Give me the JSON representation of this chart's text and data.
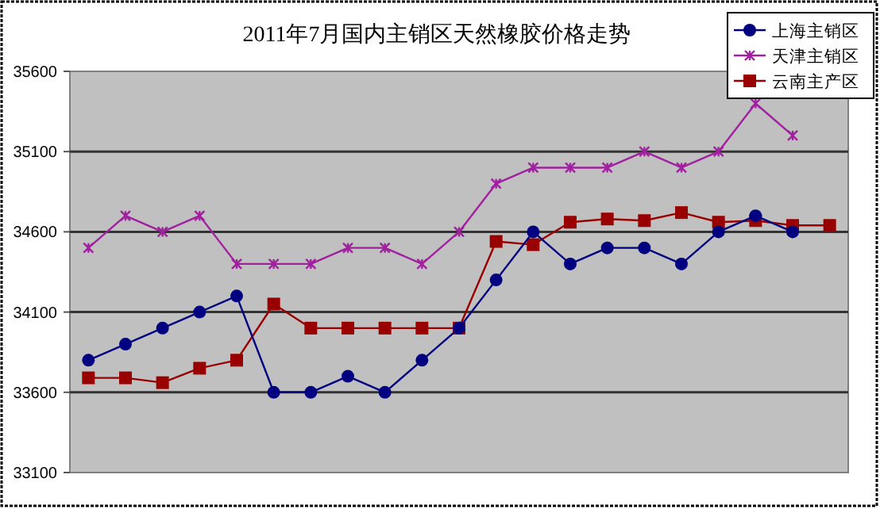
{
  "chart_data": {
    "type": "line",
    "title": "2011年7月国内主销区天然橡胶价格走势",
    "categories": [
      null,
      null,
      null,
      null,
      null,
      null,
      null,
      null,
      null,
      null,
      null,
      null,
      null,
      null,
      null,
      null,
      null,
      null,
      null,
      null,
      null
    ],
    "series": [
      {
        "name": "上海主销区",
        "color": "#000080",
        "marker": "circle",
        "values": [
          33800,
          33900,
          34000,
          34100,
          34200,
          33600,
          33600,
          33700,
          33600,
          33800,
          34000,
          34300,
          34600,
          34400,
          34500,
          34500,
          34400,
          34600,
          34700,
          34600,
          null
        ]
      },
      {
        "name": "天津主销区",
        "color": "#a0209f",
        "marker": "cross",
        "values": [
          34500,
          34700,
          34600,
          34700,
          34400,
          34400,
          34400,
          34500,
          34500,
          34400,
          34600,
          34900,
          35000,
          35000,
          35000,
          35100,
          35000,
          35100,
          35400,
          35200,
          null
        ]
      },
      {
        "name": "云南主产区",
        "color": "#990000",
        "marker": "square",
        "values": [
          33690,
          33690,
          33660,
          33750,
          33800,
          34150,
          34000,
          34000,
          34000,
          34000,
          34000,
          34540,
          34520,
          34660,
          34680,
          34670,
          34720,
          34660,
          34670,
          34640,
          34640
        ]
      }
    ],
    "ylim": [
      33100,
      35600
    ],
    "yticks": [
      33100,
      33600,
      34100,
      34600,
      35100,
      35600
    ],
    "grid": "y",
    "legend": "top right"
  }
}
